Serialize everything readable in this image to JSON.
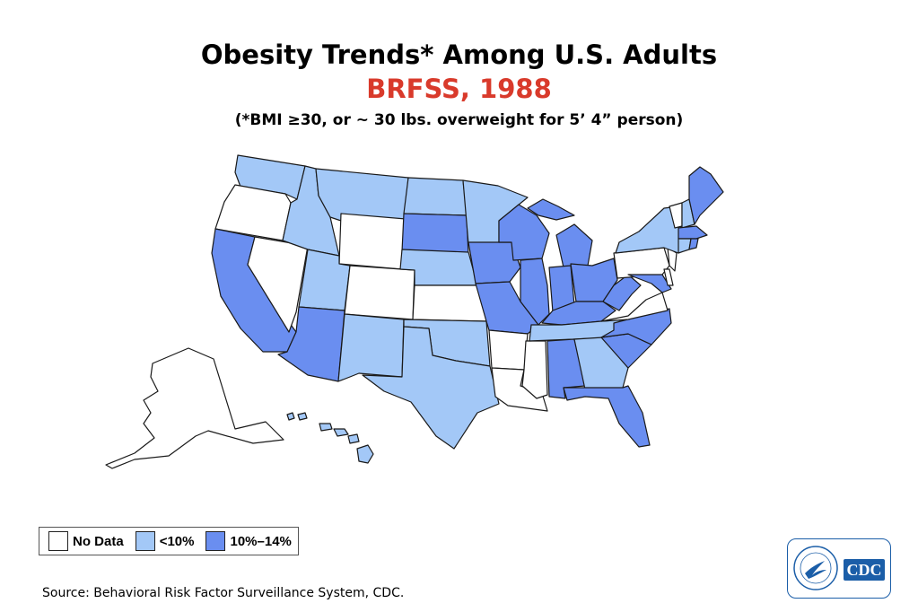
{
  "header": {
    "title": "Obesity Trends* Among U.S. Adults",
    "subtitle": "BRFSS, 1988",
    "subtitle_color": "#d93a2b",
    "note": "(*BMI ≥30, or ~ 30 lbs. overweight for 5’ 4” person)"
  },
  "legend": [
    {
      "key": "nodata",
      "label": "No Data",
      "color": "#ffffff"
    },
    {
      "key": "lt10",
      "label": "<10%",
      "color": "#a3c8f7"
    },
    {
      "key": "10to14",
      "label": "10%–14%",
      "color": "#6a8ef0"
    }
  ],
  "states": {
    "WA": "lt10",
    "OR": "nodata",
    "CA": "10to14",
    "NV": "nodata",
    "ID": "lt10",
    "MT": "lt10",
    "WY": "nodata",
    "UT": "lt10",
    "AZ": "10to14",
    "CO": "nodata",
    "NM": "lt10",
    "ND": "lt10",
    "SD": "10to14",
    "NE": "lt10",
    "KS": "nodata",
    "OK": "lt10",
    "TX": "lt10",
    "MN": "lt10",
    "IA": "10to14",
    "MO": "10to14",
    "AR": "nodata",
    "LA": "nodata",
    "WI": "10to14",
    "IL": "10to14",
    "MS": "nodata",
    "MI": "10to14",
    "IN": "10to14",
    "KY": "10to14",
    "TN": "lt10",
    "AL": "10to14",
    "OH": "10to14",
    "WV": "10to14",
    "VA": "nodata",
    "NC": "10to14",
    "SC": "10to14",
    "GA": "lt10",
    "FL": "10to14",
    "PA": "nodata",
    "NY": "lt10",
    "VT": "nodata",
    "NH": "lt10",
    "ME": "10to14",
    "MA": "10to14",
    "CT": "lt10",
    "RI": "10to14",
    "NJ": "nodata",
    "DE": "nodata",
    "MD": "10to14",
    "DC": "nodata",
    "AK": "nodata",
    "HI": "lt10"
  },
  "source": "Source: Behavioral Risk Factor Surveillance System, CDC.",
  "logo": {
    "text": "CDC",
    "color": "#1b5ea8"
  }
}
